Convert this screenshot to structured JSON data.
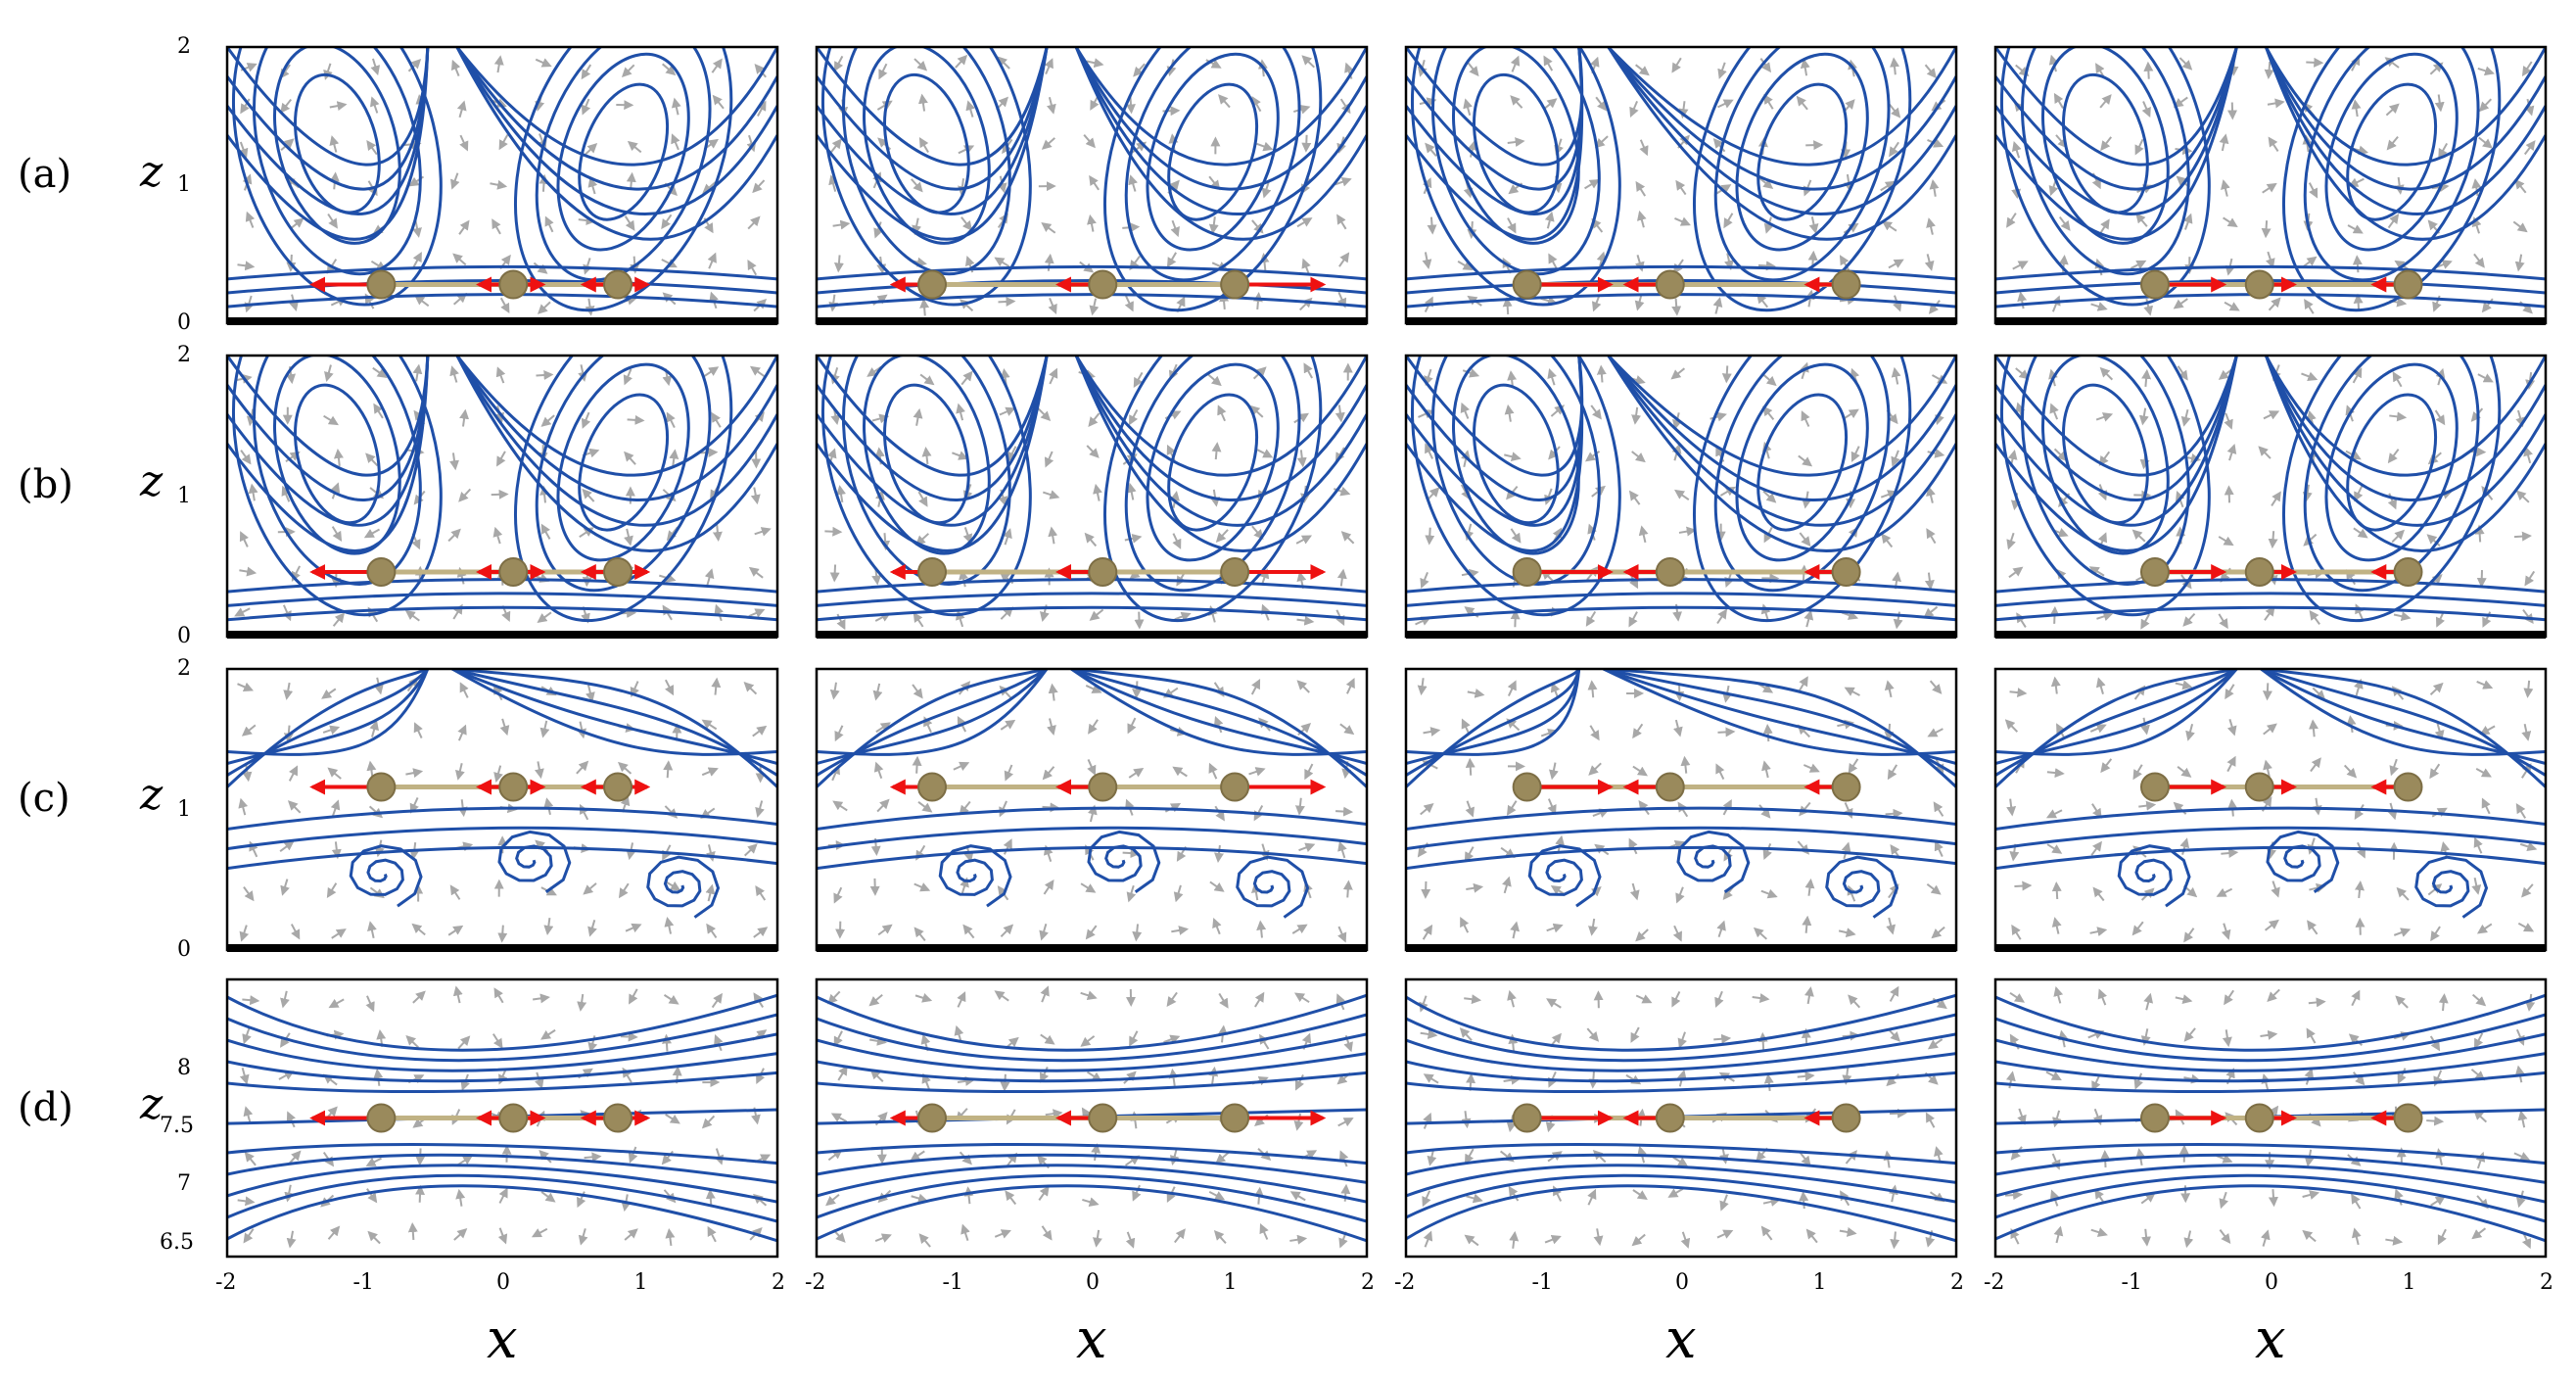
{
  "rows": [
    {
      "label": "(a)",
      "zlabel": "z",
      "yticks": [
        "0",
        "1",
        "2"
      ],
      "wall": true
    },
    {
      "label": "(b)",
      "zlabel": "z",
      "yticks": [
        "0",
        "1",
        "2"
      ],
      "wall": true
    },
    {
      "label": "(c)",
      "zlabel": "z",
      "yticks": [
        "0",
        "1",
        "2"
      ],
      "wall": true
    },
    {
      "label": "(d)",
      "zlabel": "z",
      "yticks": [
        "6.5",
        "7",
        "7.5",
        "8"
      ],
      "wall": false
    }
  ],
  "xlabel": "x",
  "xticks": [
    "-2",
    "-1",
    "0",
    "1",
    "2"
  ],
  "colors": {
    "streamline": "#1f4fa8",
    "vector": "#a8a8a8",
    "force": "#ee1111",
    "sphere": "#9a8a5c",
    "rod": "#c0b284",
    "wall": "#000000"
  }
}
